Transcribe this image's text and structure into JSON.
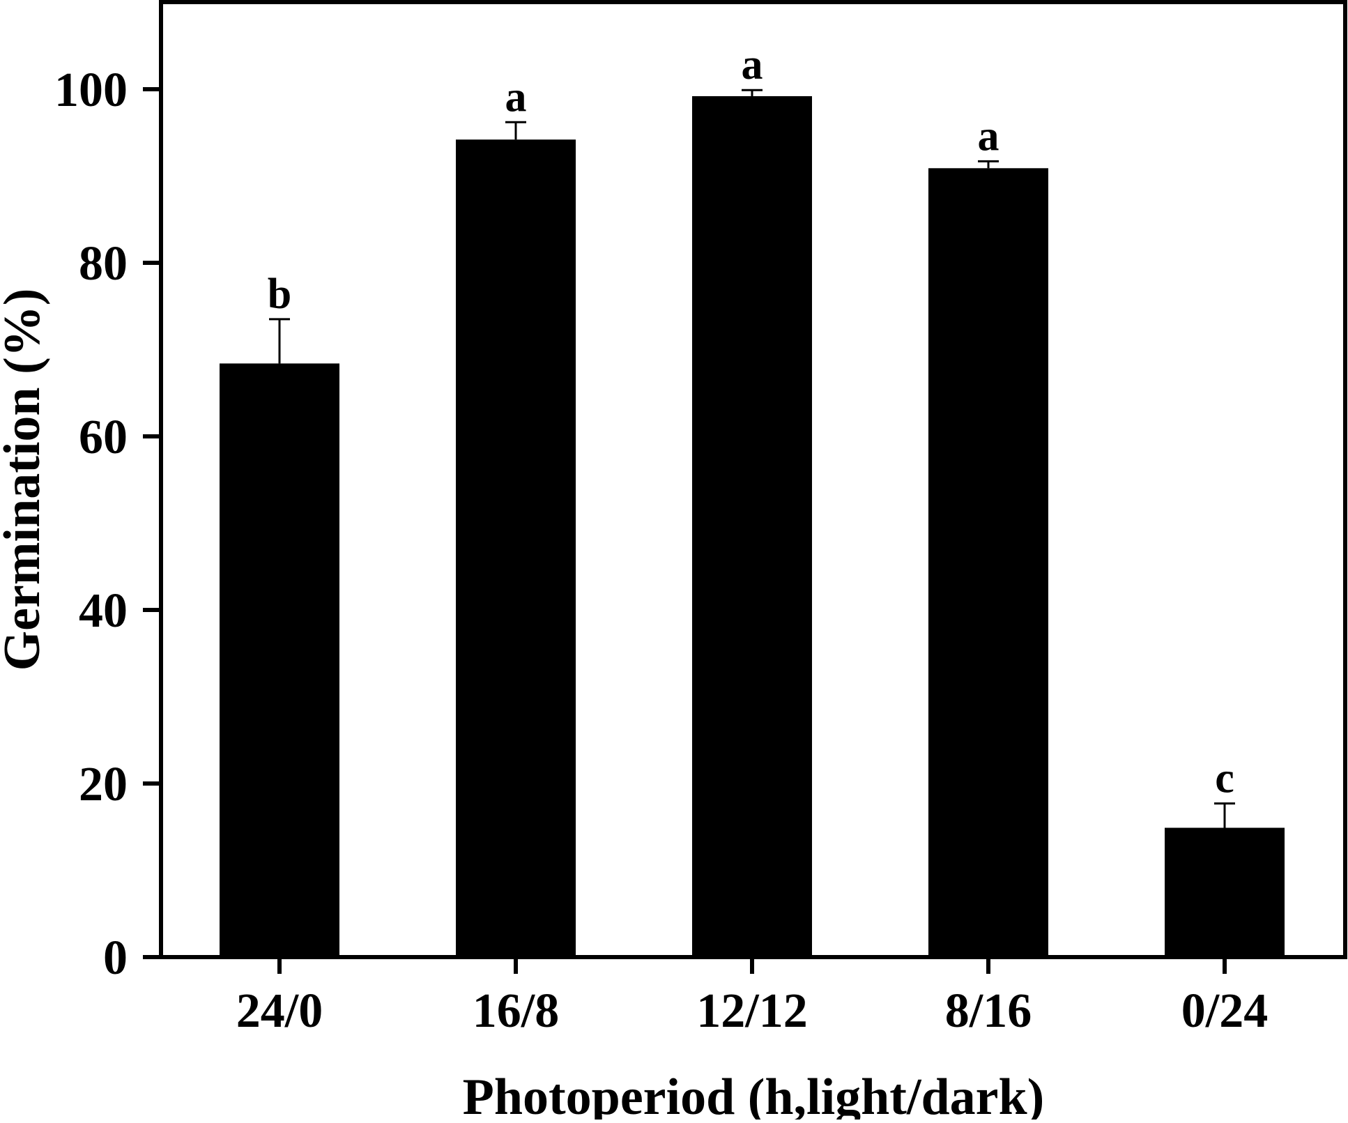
{
  "chart_data": {
    "type": "bar",
    "title": "",
    "xlabel": "Photoperiod (h,light/dark)",
    "ylabel": "Germination (%)",
    "categories": [
      "24/0",
      "16/8",
      "12/12",
      "8/16",
      "0/24"
    ],
    "values": [
      68.4,
      94.2,
      99.2,
      90.9,
      14.9
    ],
    "errors": [
      5.1,
      2.0,
      0.7,
      0.8,
      2.8
    ],
    "significance_letters": [
      "b",
      "a",
      "a",
      "a",
      "c"
    ],
    "ylim": [
      0,
      110
    ],
    "yticks": [
      0,
      20,
      40,
      60,
      80,
      100
    ],
    "ytick_labels": [
      "0",
      "20",
      "40",
      "60",
      "80",
      "100"
    ],
    "grid": false,
    "legend": null,
    "bar_color": "#000000",
    "frame": "box"
  }
}
